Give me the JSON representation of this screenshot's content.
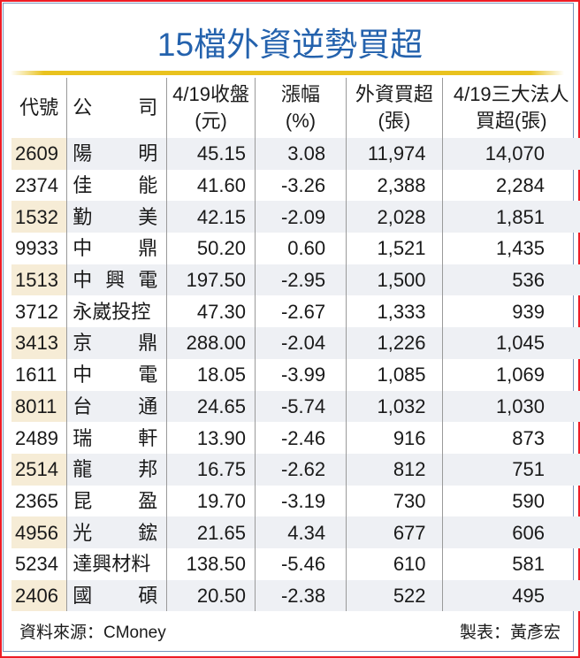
{
  "title": "15檔外資逆勢買超",
  "colors": {
    "title": "#2462ad",
    "gold_bar": "#e9c21e",
    "outer_border": "#ee1c25",
    "inner_border": "#7a95bd",
    "row_stripe": "#eef0f4",
    "code_stripe": "#f6ecd6"
  },
  "table": {
    "headers": [
      {
        "line1": "代號",
        "line2": ""
      },
      {
        "line1": "公",
        "line2": "司"
      },
      {
        "line1": "4/19收盤",
        "line2": "(元)"
      },
      {
        "line1": "漲幅",
        "line2": "(%)"
      },
      {
        "line1": "外資買超",
        "line2": "(張)"
      },
      {
        "line1": "4/19三大法人",
        "line2": "買超(張)"
      }
    ],
    "rows": [
      {
        "code": "2609",
        "name": [
          "陽",
          "明"
        ],
        "close": "45.15",
        "change": "3.08",
        "foreign": "11,974",
        "institutional": "14,070"
      },
      {
        "code": "2374",
        "name": [
          "佳",
          "能"
        ],
        "close": "41.60",
        "change": "-3.26",
        "foreign": "2,388",
        "institutional": "2,284"
      },
      {
        "code": "1532",
        "name": [
          "勤",
          "美"
        ],
        "close": "42.15",
        "change": "-2.09",
        "foreign": "2,028",
        "institutional": "1,851"
      },
      {
        "code": "9933",
        "name": [
          "中",
          "鼎"
        ],
        "close": "50.20",
        "change": "0.60",
        "foreign": "1,521",
        "institutional": "1,435"
      },
      {
        "code": "1513",
        "name": [
          "中",
          "興",
          "電"
        ],
        "close": "197.50",
        "change": "-2.95",
        "foreign": "1,500",
        "institutional": "536"
      },
      {
        "code": "3712",
        "name": [
          "永",
          "崴",
          "投",
          "控"
        ],
        "close": "47.30",
        "change": "-2.67",
        "foreign": "1,333",
        "institutional": "939"
      },
      {
        "code": "3413",
        "name": [
          "京",
          "鼎"
        ],
        "close": "288.00",
        "change": "-2.04",
        "foreign": "1,226",
        "institutional": "1,045"
      },
      {
        "code": "1611",
        "name": [
          "中",
          "電"
        ],
        "close": "18.05",
        "change": "-3.99",
        "foreign": "1,085",
        "institutional": "1,069"
      },
      {
        "code": "8011",
        "name": [
          "台",
          "通"
        ],
        "close": "24.65",
        "change": "-5.74",
        "foreign": "1,032",
        "institutional": "1,030"
      },
      {
        "code": "2489",
        "name": [
          "瑞",
          "軒"
        ],
        "close": "13.90",
        "change": "-2.46",
        "foreign": "916",
        "institutional": "873"
      },
      {
        "code": "2514",
        "name": [
          "龍",
          "邦"
        ],
        "close": "16.75",
        "change": "-2.62",
        "foreign": "812",
        "institutional": "751"
      },
      {
        "code": "2365",
        "name": [
          "昆",
          "盈"
        ],
        "close": "19.70",
        "change": "-3.19",
        "foreign": "730",
        "institutional": "590"
      },
      {
        "code": "4956",
        "name": [
          "光",
          "鋐"
        ],
        "close": "21.65",
        "change": "4.34",
        "foreign": "677",
        "institutional": "606"
      },
      {
        "code": "5234",
        "name": [
          "達",
          "興",
          "材",
          "料"
        ],
        "close": "138.50",
        "change": "-5.46",
        "foreign": "610",
        "institutional": "581"
      },
      {
        "code": "2406",
        "name": [
          "國",
          "碩"
        ],
        "close": "20.50",
        "change": "-2.38",
        "foreign": "522",
        "institutional": "495"
      }
    ]
  },
  "footer": {
    "source": "資料來源：CMoney",
    "author": "製表：黃彥宏"
  }
}
